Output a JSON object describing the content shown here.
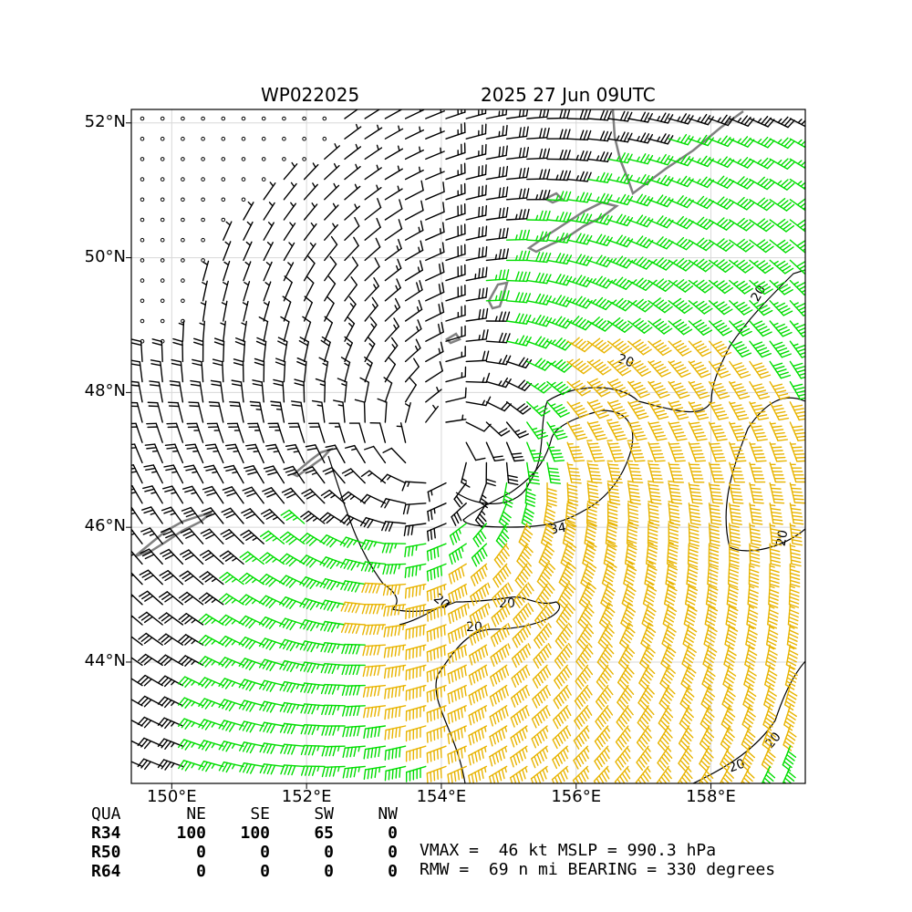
{
  "title": {
    "storm_id": "WP022025",
    "datetime": "2025 27 Jun 09UTC"
  },
  "axes": {
    "lat_labels": [
      "52°N",
      "50°N",
      "48°N",
      "46°N",
      "44°N"
    ],
    "lat_values": [
      52,
      50,
      48,
      46,
      44
    ],
    "lon_labels": [
      "150°E",
      "152°E",
      "154°E",
      "156°E",
      "158°E"
    ],
    "lon_values": [
      150,
      152,
      154,
      156,
      158
    ],
    "lon_range": [
      149.4,
      159.4
    ],
    "lat_range": [
      42.2,
      52.2
    ]
  },
  "storm_center": {
    "lon": 154.0,
    "lat": 47.2
  },
  "contour_labels": [
    "20",
    "20",
    "20",
    "20",
    "20",
    "20",
    "20",
    "20",
    "34"
  ],
  "colors": {
    "barb_default": "#000000",
    "barb_34kt": "#00dd00",
    "barb_50kt": "#e8b400",
    "coastline": "#808080",
    "contour": "#000000",
    "grid": "#d8d8d8"
  },
  "wind_radii_table": {
    "header": [
      "QUA",
      "NE",
      "SE",
      "SW",
      "NW"
    ],
    "rows": [
      {
        "label": "R34",
        "values": [
          "100",
          "100",
          "65",
          "0"
        ]
      },
      {
        "label": "R50",
        "values": [
          "0",
          "0",
          "0",
          "0"
        ]
      },
      {
        "label": "R64",
        "values": [
          "0",
          "0",
          "0",
          "0"
        ]
      }
    ]
  },
  "stats": {
    "line1": "VMAX =  46 kt MSLP = 990.3 hPa",
    "line2": "RMW =  69 n mi BEARING = 330 degrees"
  }
}
